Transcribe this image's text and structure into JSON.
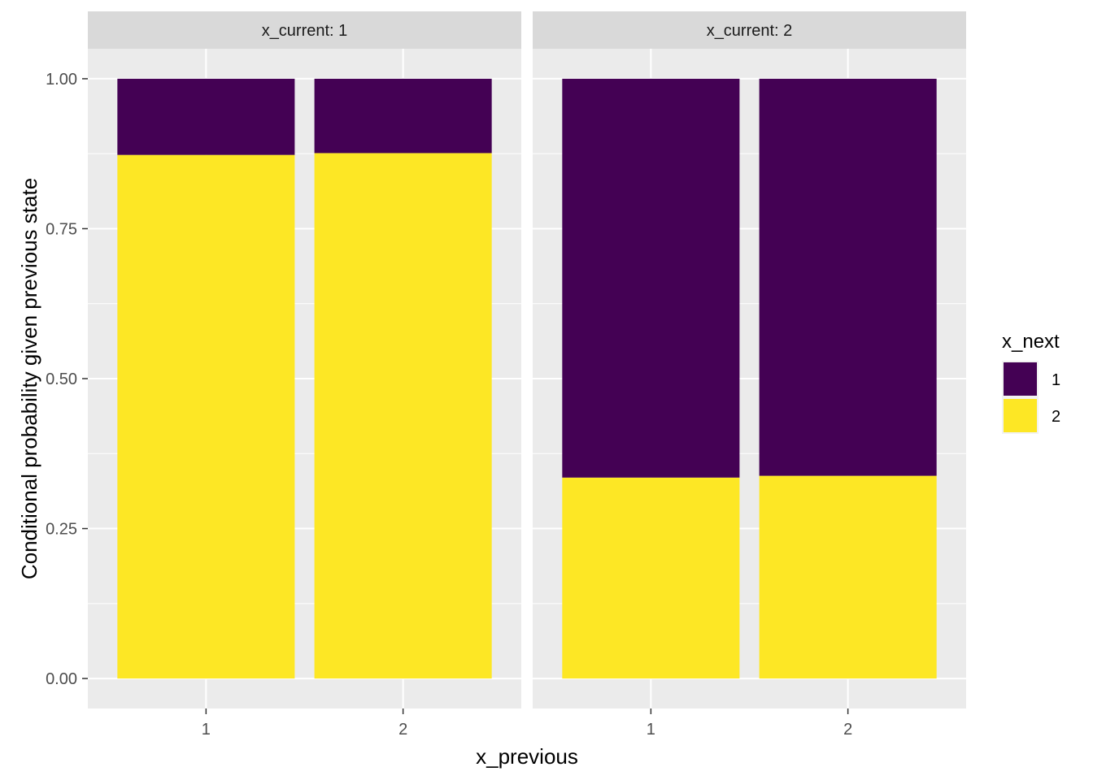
{
  "chart_data": {
    "type": "bar",
    "stacked": true,
    "facet_variable": "x_current",
    "facets": [
      {
        "strip_label": "x_current: 1",
        "categories": [
          "1",
          "2"
        ],
        "series": [
          {
            "name": "1",
            "values": [
              0.127,
              0.124
            ]
          },
          {
            "name": "2",
            "values": [
              0.873,
              0.876
            ]
          }
        ]
      },
      {
        "strip_label": "x_current: 2",
        "categories": [
          "1",
          "2"
        ],
        "series": [
          {
            "name": "1",
            "values": [
              0.665,
              0.662
            ]
          },
          {
            "name": "2",
            "values": [
              0.335,
              0.338
            ]
          }
        ]
      }
    ],
    "xlabel": "x_previous",
    "ylabel": "Conditional probability given previous state",
    "ylim": [
      -0.05,
      1.05
    ],
    "yticks": [
      "0.00",
      "0.25",
      "0.50",
      "0.75",
      "1.00"
    ],
    "ytick_values": [
      0,
      0.25,
      0.5,
      0.75,
      1
    ],
    "grid": true,
    "legend": {
      "title": "x_next",
      "placement": "right",
      "entries": [
        {
          "label": "1",
          "color": "#440154"
        },
        {
          "label": "2",
          "color": "#FDE725"
        }
      ]
    },
    "colors": {
      "panel_background": "#EBEBEB",
      "strip_background": "#D9D9D9",
      "grid": "#FFFFFF"
    }
  }
}
